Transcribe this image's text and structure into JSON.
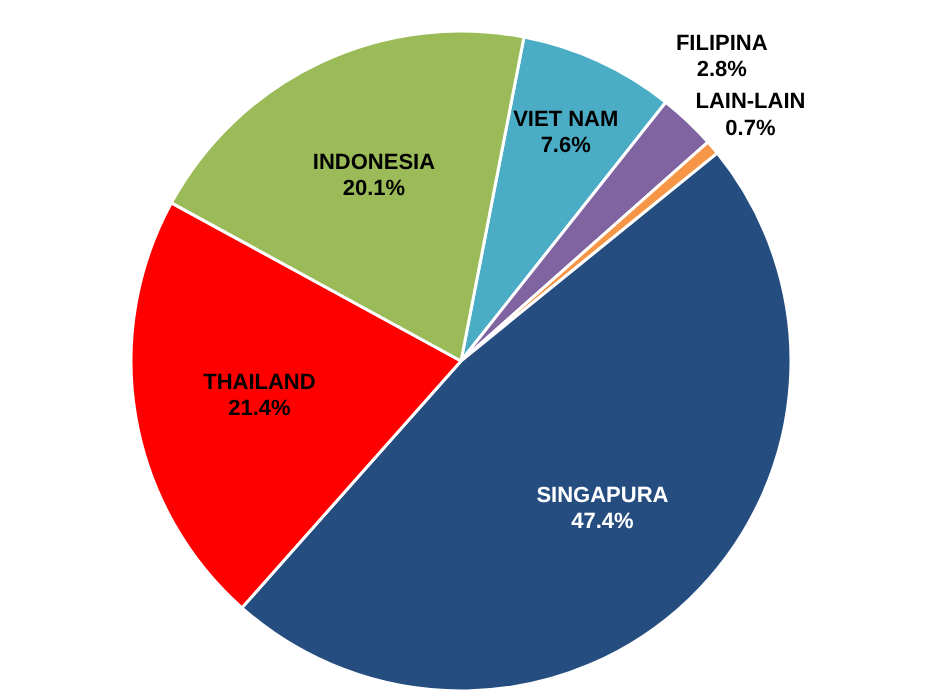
{
  "chart_data": {
    "type": "pie",
    "categories": [
      "VIET NAM",
      "FILIPINA",
      "LAIN-LAIN",
      "SINGAPURA",
      "THAILAND",
      "INDONESIA"
    ],
    "values": [
      7.6,
      2.8,
      0.7,
      47.4,
      21.4,
      20.1
    ],
    "value_labels": [
      "7.6%",
      "2.8%",
      "0.7%",
      "47.4%",
      "21.4%",
      "20.1%"
    ],
    "colors": [
      "#4bacc6",
      "#8064a2",
      "#f79646",
      "#254d80",
      "#ff0000",
      "#9bbb59"
    ]
  }
}
